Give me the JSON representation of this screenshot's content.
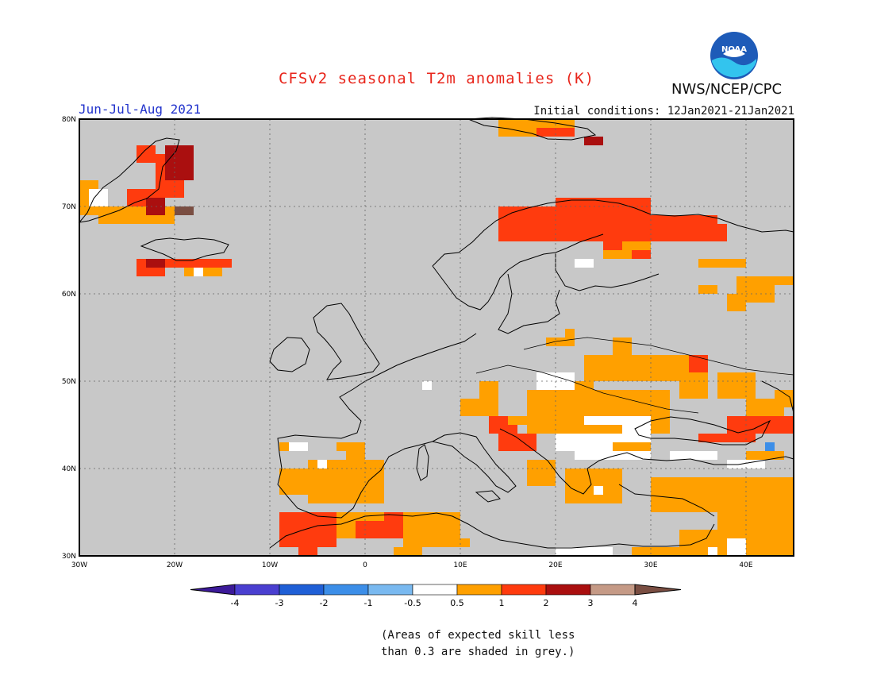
{
  "header": {
    "title": "CFSv2 seasonal T2m anomalies (K)",
    "agency": "NWS/NCEP/CPC",
    "season": "Jun-Jul-Aug 2021",
    "initial_conditions": "Initial conditions: 12Jan2021-21Jan2021",
    "logo_text": "NOAA"
  },
  "map": {
    "lon_range": [
      -30,
      45
    ],
    "lat_range": [
      30,
      80
    ],
    "lon_ticks": [
      "30W",
      "20W",
      "10W",
      "0",
      "10E",
      "20E",
      "30E",
      "40E"
    ],
    "lat_ticks": [
      "30N",
      "40N",
      "50N",
      "60N",
      "70N",
      "80N"
    ],
    "grid": true,
    "background_color": "#c8c8c8"
  },
  "colorbar": {
    "tick_labels": [
      "-4",
      "-3",
      "-2",
      "-1",
      "-0.5",
      "0.5",
      "1",
      "2",
      "3",
      "4"
    ],
    "colors": [
      "#3c1a99",
      "#4a3fd0",
      "#1f5fd6",
      "#3c8ee8",
      "#79b9f0",
      "#ffffff",
      "#ffa000",
      "#ff3b0e",
      "#aa0f0f",
      "#c59a86",
      "#7a4e42"
    ]
  },
  "footnote": {
    "line1": "(Areas of expected skill less",
    "line2": "than 0.3 are shaded in grey.)"
  }
}
